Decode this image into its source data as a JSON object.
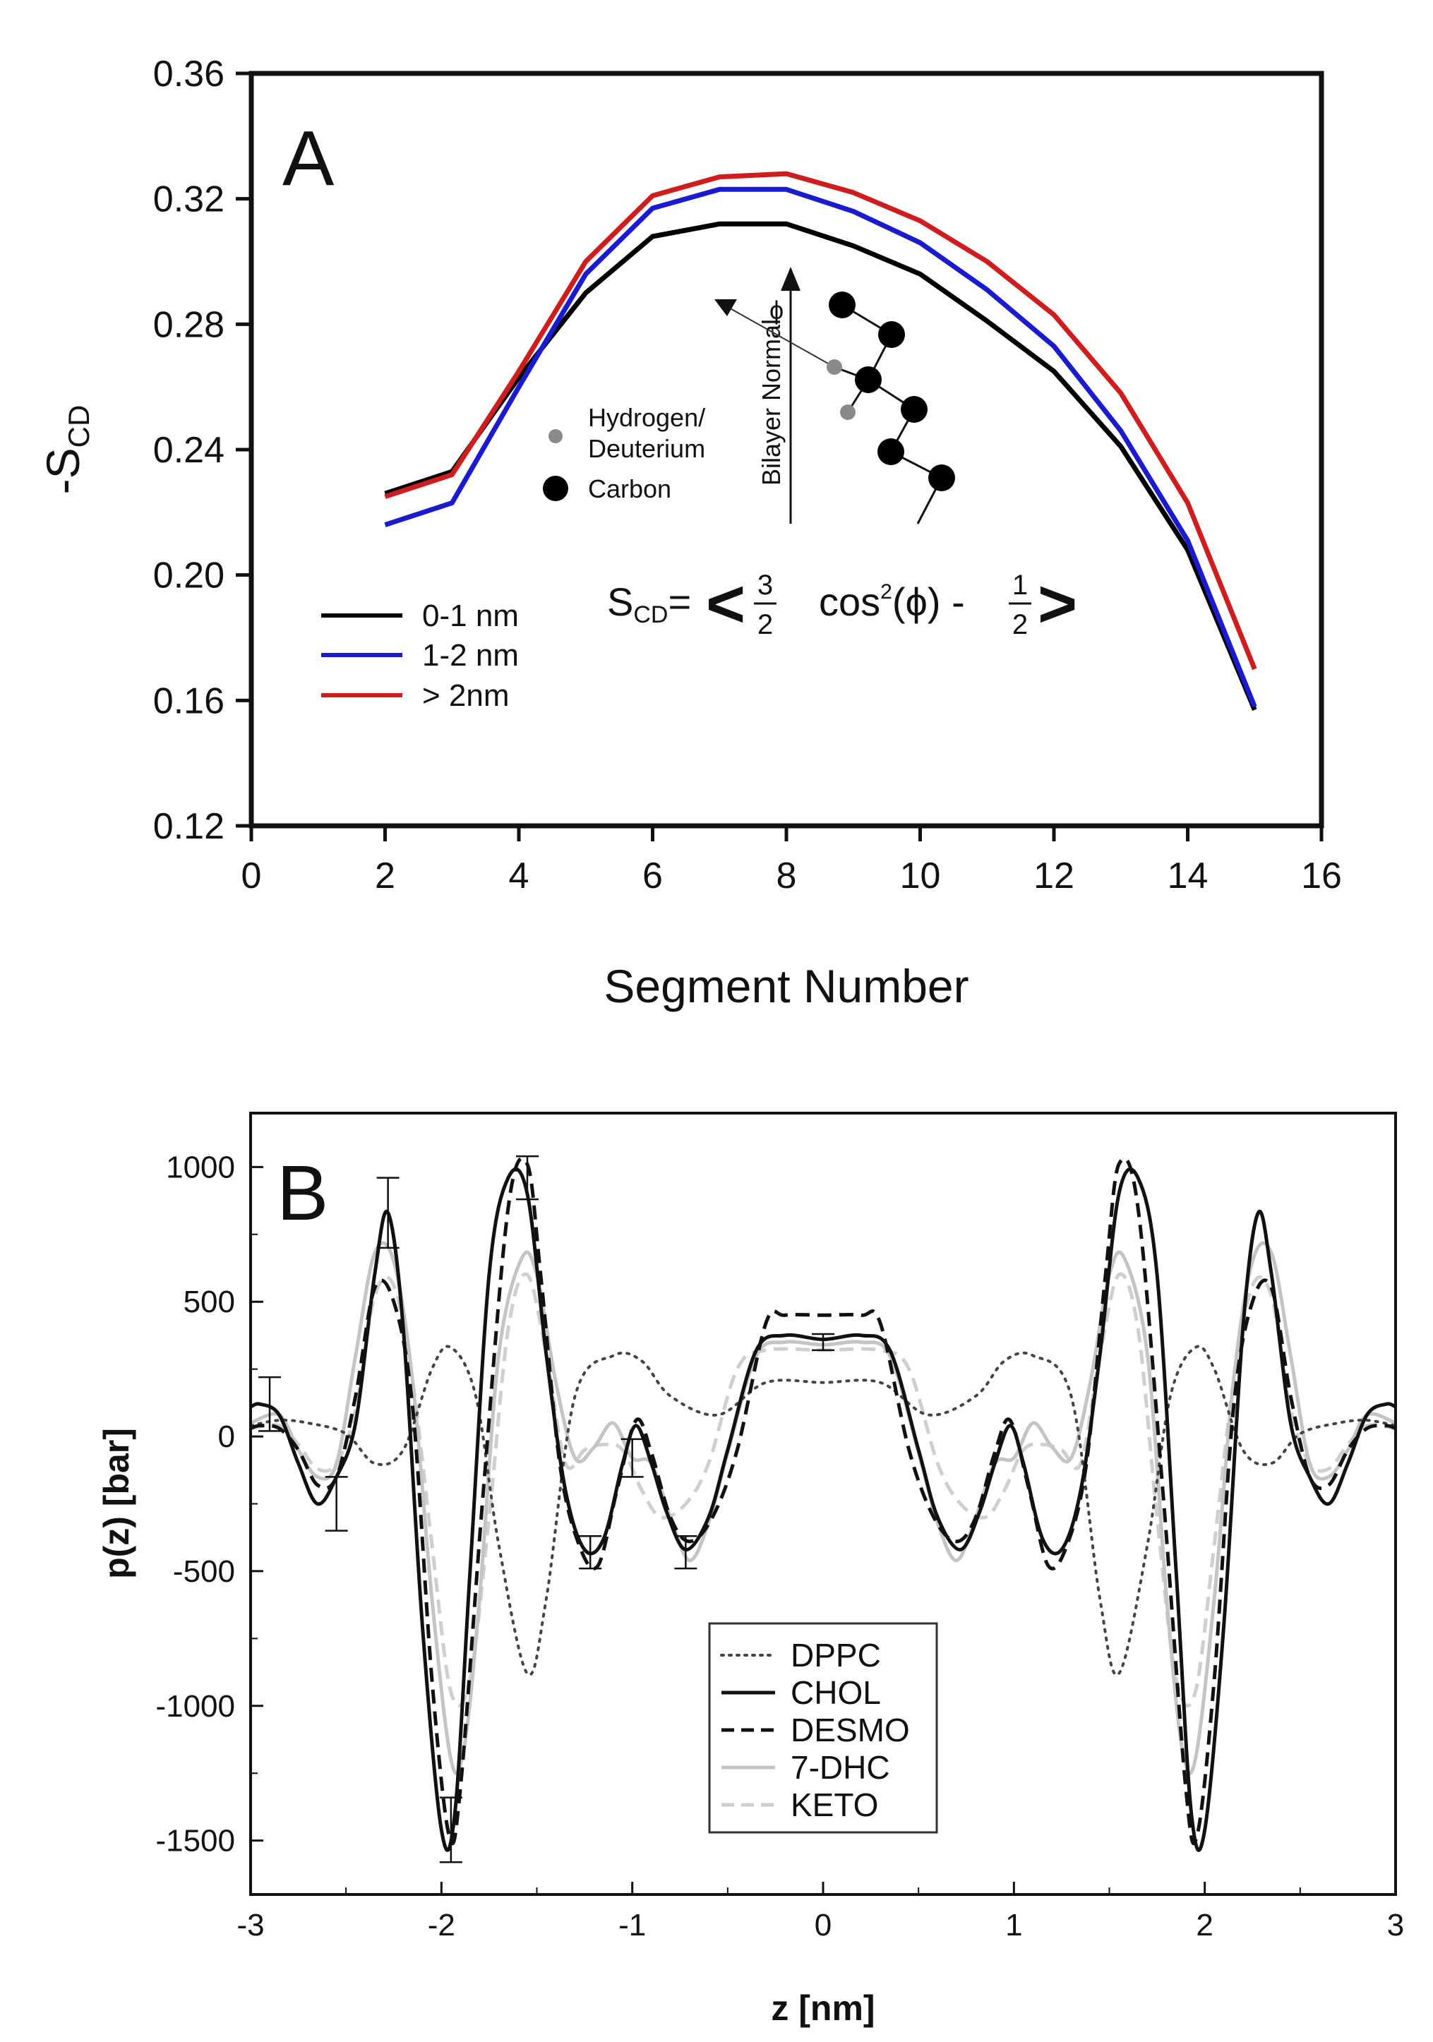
{
  "chart_data": [
    {
      "type": "line",
      "panel_label": "A",
      "xlabel": "Segment Number",
      "ylabel": "-S",
      "ylabel_sub": "CD",
      "xlim": [
        0,
        16
      ],
      "ylim": [
        0.12,
        0.36
      ],
      "xticks": [
        "0",
        "2",
        "4",
        "6",
        "8",
        "10",
        "12",
        "14",
        "16"
      ],
      "yticks": [
        "0.12",
        "0.16",
        "0.20",
        "0.24",
        "0.28",
        "0.32",
        "0.36"
      ],
      "legend_position": "bottom-left",
      "x": [
        2,
        3,
        4,
        5,
        6,
        7,
        8,
        9,
        10,
        11,
        12,
        13,
        14,
        15
      ],
      "series": [
        {
          "name": "0-1 nm",
          "color": "#000000",
          "values": [
            0.226,
            0.233,
            0.263,
            0.29,
            0.308,
            0.312,
            0.312,
            0.305,
            0.296,
            0.281,
            0.265,
            0.241,
            0.208,
            0.157
          ]
        },
        {
          "name": "1-2 nm",
          "color": "#1a1ad0",
          "values": [
            0.216,
            0.223,
            0.26,
            0.296,
            0.317,
            0.323,
            0.323,
            0.316,
            0.306,
            0.291,
            0.273,
            0.246,
            0.211,
            0.158
          ]
        },
        {
          "name": "> 2nm",
          "color": "#d01c1c",
          "values": [
            0.225,
            0.232,
            0.265,
            0.3,
            0.321,
            0.327,
            0.328,
            0.322,
            0.313,
            0.3,
            0.283,
            0.258,
            0.223,
            0.17
          ]
        }
      ],
      "inset": {
        "legend_hydrogen": "Hydrogen/",
        "legend_hydrogen_line2": "Deuterium",
        "legend_carbon": "Carbon",
        "axis_label": "Bilayer Normal",
        "angle_symbol": "ϕ",
        "formula": {
          "lhs": "S",
          "lhs_sub": "CD",
          "equals": "=",
          "open": "<",
          "frac1_num": "3",
          "frac1_den": "2",
          "cos": "cos",
          "power": "2",
          "arg": "(ϕ) -",
          "frac2_num": "1",
          "frac2_den": "2",
          "close": ">"
        },
        "hydrogen_color": "#8a8a8a",
        "carbon_color": "#000000"
      }
    },
    {
      "type": "line",
      "panel_label": "B",
      "xlabel": "z [nm]",
      "ylabel": "p(z) [bar]",
      "xlim": [
        -3,
        3
      ],
      "ylim": [
        -1700,
        1200
      ],
      "xticks": [
        "-3",
        "-2",
        "-1",
        "0",
        "1",
        "2",
        "3"
      ],
      "yticks": [
        "-1500",
        "-1000",
        "-500",
        "0",
        "500",
        "1000"
      ],
      "legend_position": "bottom-center",
      "symmetric_about_zero": true,
      "series": [
        {
          "name": "DPPC",
          "style": "dotted",
          "color": "#444444",
          "x": [
            0,
            0.3,
            0.55,
            0.8,
            0.95,
            1.1,
            1.3,
            1.45,
            1.55,
            1.7,
            1.82,
            1.95,
            2.05,
            2.2,
            2.35,
            2.5,
            2.7,
            2.85,
            3.0
          ],
          "values": [
            200,
            200,
            80,
            150,
            280,
            300,
            150,
            -600,
            -880,
            -400,
            150,
            330,
            250,
            -50,
            -100,
            10,
            50,
            60,
            40
          ]
        },
        {
          "name": "CHOL",
          "style": "solid",
          "color": "#111111",
          "x": [
            0,
            0.2,
            0.35,
            0.5,
            0.6,
            0.72,
            0.82,
            0.9,
            0.98,
            1.05,
            1.15,
            1.25,
            1.35,
            1.45,
            1.55,
            1.65,
            1.75,
            1.85,
            1.93,
            2.0,
            2.1,
            2.2,
            2.28,
            2.35,
            2.45,
            2.55,
            2.65,
            2.75,
            2.85,
            2.95,
            3.0
          ],
          "values": [
            360,
            375,
            320,
            -50,
            -300,
            -420,
            -280,
            -100,
            40,
            -100,
            -380,
            -420,
            -200,
            300,
            900,
            960,
            600,
            -500,
            -1400,
            -1460,
            -700,
            400,
            830,
            600,
            50,
            -150,
            -250,
            -100,
            80,
            120,
            110
          ]
        },
        {
          "name": "DESMO",
          "style": "dashed",
          "color": "#111111",
          "x": [
            0,
            0.2,
            0.3,
            0.45,
            0.58,
            0.7,
            0.8,
            0.9,
            0.98,
            1.08,
            1.18,
            1.28,
            1.38,
            1.48,
            1.55,
            1.65,
            1.78,
            1.9,
            1.96,
            2.05,
            2.15,
            2.25,
            2.35,
            2.45,
            2.55,
            2.65,
            2.75,
            2.85,
            2.95,
            3.0
          ],
          "values": [
            450,
            450,
            420,
            -50,
            -300,
            -390,
            -300,
            -60,
            60,
            -200,
            -480,
            -400,
            -100,
            600,
            1010,
            850,
            -200,
            -1300,
            -1480,
            -900,
            100,
            500,
            550,
            150,
            -150,
            -180,
            -50,
            30,
            40,
            30
          ]
        },
        {
          "name": "7-DHC",
          "style": "solid",
          "color": "#c4c4c4",
          "x": [
            0,
            0.2,
            0.35,
            0.5,
            0.6,
            0.7,
            0.8,
            0.9,
            1.0,
            1.1,
            1.2,
            1.3,
            1.4,
            1.5,
            1.58,
            1.7,
            1.8,
            1.88,
            1.95,
            2.05,
            2.15,
            2.25,
            2.35,
            2.45,
            2.55,
            2.65,
            2.75,
            2.85,
            3.0
          ],
          "values": [
            340,
            350,
            300,
            -60,
            -320,
            -460,
            -300,
            -100,
            -80,
            50,
            -40,
            -80,
            200,
            600,
            660,
            300,
            -600,
            -1150,
            -1200,
            -600,
            200,
            650,
            680,
            300,
            -100,
            -150,
            -50,
            80,
            50
          ]
        },
        {
          "name": "KETO",
          "style": "dashed",
          "color": "#cfcfcf",
          "x": [
            0,
            0.3,
            0.45,
            0.6,
            0.72,
            0.85,
            0.95,
            1.05,
            1.15,
            1.25,
            1.35,
            1.45,
            1.55,
            1.65,
            1.75,
            1.85,
            1.95,
            2.05,
            2.15,
            2.25,
            2.35,
            2.45,
            2.55,
            2.65,
            2.75,
            2.85,
            3.0
          ],
          "values": [
            320,
            320,
            250,
            -100,
            -250,
            -300,
            -200,
            -50,
            -30,
            -50,
            -100,
            300,
            600,
            400,
            -300,
            -900,
            -950,
            -400,
            200,
            560,
            520,
            100,
            -100,
            -120,
            -30,
            40,
            30
          ]
        }
      ],
      "error_bars": [
        {
          "x": -2.9,
          "y": 120,
          "err": 100
        },
        {
          "x": -2.55,
          "y": -250,
          "err": 100
        },
        {
          "x": -2.28,
          "y": 830,
          "err": 130
        },
        {
          "x": -1.95,
          "y": -1460,
          "err": 120
        },
        {
          "x": -1.55,
          "y": 960,
          "err": 80
        },
        {
          "x": -1.22,
          "y": -430,
          "err": 60
        },
        {
          "x": -1.0,
          "y": -80,
          "err": 70
        },
        {
          "x": -0.72,
          "y": -430,
          "err": 60
        },
        {
          "x": 0.0,
          "y": 350,
          "err": 30
        }
      ]
    }
  ]
}
